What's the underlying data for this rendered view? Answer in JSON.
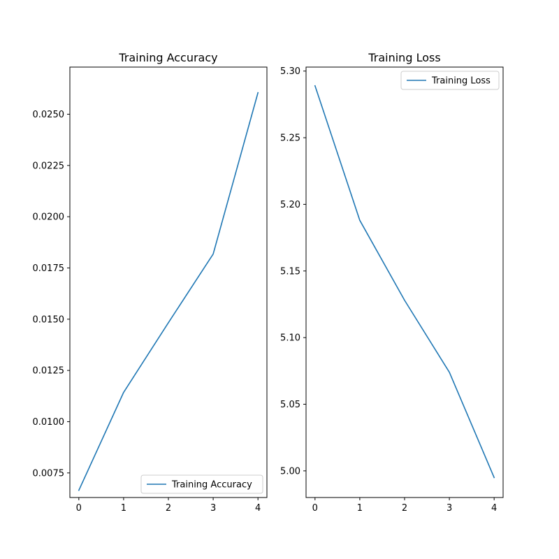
{
  "chart_data": [
    {
      "type": "line",
      "title": "Training Accuracy",
      "xlabel": "",
      "ylabel": "",
      "x": [
        0,
        1,
        2,
        3,
        4
      ],
      "xticks": [
        0,
        1,
        2,
        3,
        4
      ],
      "xtick_labels": [
        "0",
        "1",
        "2",
        "3",
        "4"
      ],
      "xlim": [
        -0.2,
        4.2
      ],
      "ylim": [
        0.0063,
        0.0273
      ],
      "yticks": [
        0.0075,
        0.01,
        0.0125,
        0.015,
        0.0175,
        0.02,
        0.0225,
        0.025
      ],
      "ytick_labels": [
        "0.0075",
        "0.0100",
        "0.0125",
        "0.0150",
        "0.0175",
        "0.0200",
        "0.0225",
        "0.0250"
      ],
      "grid": false,
      "legend_position": "lower right",
      "series": [
        {
          "name": "Training Accuracy",
          "color": "#1f77b4",
          "values": [
            0.00665,
            0.01143,
            0.01483,
            0.01818,
            0.02605
          ]
        }
      ]
    },
    {
      "type": "line",
      "title": "Training Loss",
      "xlabel": "",
      "ylabel": "",
      "x": [
        0,
        1,
        2,
        3,
        4
      ],
      "xticks": [
        0,
        1,
        2,
        3,
        4
      ],
      "xtick_labels": [
        "0",
        "1",
        "2",
        "3",
        "4"
      ],
      "xlim": [
        -0.2,
        4.2
      ],
      "ylim": [
        4.98,
        5.303
      ],
      "yticks": [
        5.0,
        5.05,
        5.1,
        5.15,
        5.2,
        5.25,
        5.3
      ],
      "ytick_labels": [
        "5.00",
        "5.05",
        "5.10",
        "5.15",
        "5.20",
        "5.25",
        "5.30"
      ],
      "grid": false,
      "legend_position": "upper right",
      "series": [
        {
          "name": "Training Loss",
          "color": "#1f77b4",
          "values": [
            5.289,
            5.188,
            5.128,
            5.074,
            4.995
          ]
        }
      ]
    }
  ]
}
